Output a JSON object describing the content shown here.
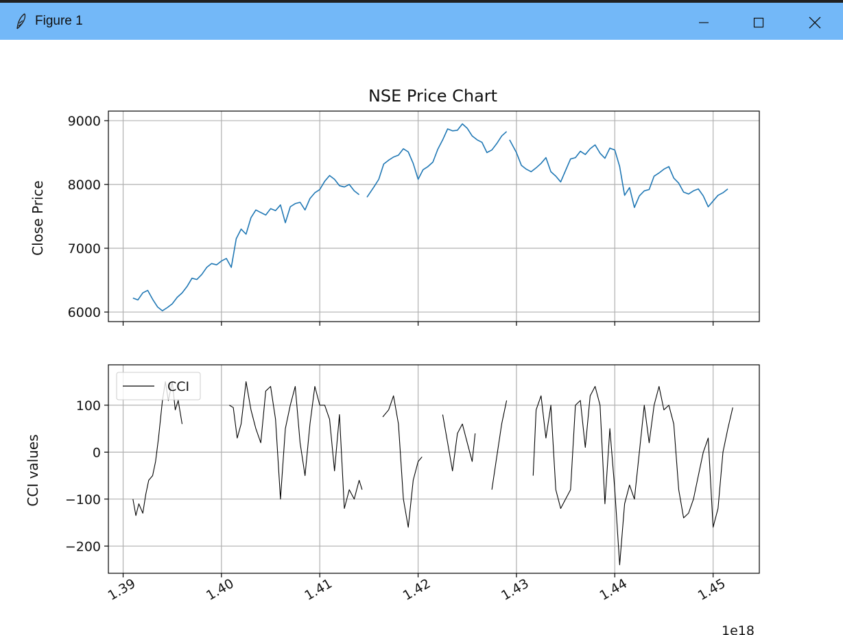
{
  "window": {
    "title": "Figure 1"
  },
  "icons": {
    "app": "feather-icon",
    "minimize": "minimize-icon",
    "maximize": "maximize-icon",
    "close": "close-icon"
  },
  "colors": {
    "titlebar": "#73b8f8",
    "price_line": "#1f77b4",
    "cci_line": "#000000",
    "grid": "#b0b0b0"
  },
  "chart_data": [
    {
      "type": "line",
      "title": "NSE Price Chart",
      "xlabel": "",
      "ylabel": "Close Price",
      "xlim": [
        1.3885,
        1.4547
      ],
      "ylim": [
        5850,
        9150
      ],
      "yticks": [
        6000,
        7000,
        8000,
        9000
      ],
      "ytick_labels": [
        "6000",
        "7000",
        "8000",
        "9000"
      ],
      "grid": true,
      "series": [
        {
          "segments": [
            [
              [
                1.391,
                6220
              ],
              [
                1.3915,
                6190
              ],
              [
                1.392,
                6300
              ],
              [
                1.3925,
                6340
              ],
              [
                1.393,
                6200
              ],
              [
                1.3935,
                6080
              ],
              [
                1.394,
                6020
              ],
              [
                1.3945,
                6070
              ],
              [
                1.395,
                6130
              ],
              [
                1.3955,
                6230
              ],
              [
                1.396,
                6300
              ],
              [
                1.3965,
                6400
              ],
              [
                1.397,
                6530
              ],
              [
                1.3975,
                6510
              ],
              [
                1.398,
                6590
              ],
              [
                1.3985,
                6700
              ],
              [
                1.399,
                6760
              ],
              [
                1.3995,
                6740
              ],
              [
                1.4,
                6800
              ],
              [
                1.4005,
                6840
              ],
              [
                1.401,
                6700
              ],
              [
                1.4015,
                7150
              ],
              [
                1.402,
                7300
              ],
              [
                1.4025,
                7220
              ],
              [
                1.403,
                7480
              ],
              [
                1.4035,
                7600
              ],
              [
                1.404,
                7560
              ],
              [
                1.4045,
                7520
              ],
              [
                1.405,
                7620
              ],
              [
                1.4055,
                7590
              ],
              [
                1.406,
                7680
              ],
              [
                1.4065,
                7400
              ],
              [
                1.407,
                7650
              ],
              [
                1.4075,
                7700
              ],
              [
                1.408,
                7720
              ],
              [
                1.4085,
                7600
              ],
              [
                1.409,
                7780
              ],
              [
                1.4095,
                7870
              ],
              [
                1.41,
                7920
              ],
              [
                1.4105,
                8050
              ],
              [
                1.411,
                8140
              ],
              [
                1.4115,
                8080
              ],
              [
                1.412,
                7980
              ],
              [
                1.4125,
                7960
              ],
              [
                1.413,
                8000
              ],
              [
                1.4135,
                7900
              ],
              [
                1.414,
                7840
              ]
            ],
            [
              [
                1.4148,
                7800
              ],
              [
                1.4155,
                7960
              ],
              [
                1.416,
                8080
              ],
              [
                1.4165,
                8320
              ],
              [
                1.417,
                8380
              ],
              [
                1.4175,
                8430
              ],
              [
                1.418,
                8460
              ],
              [
                1.4185,
                8560
              ],
              [
                1.419,
                8510
              ],
              [
                1.4195,
                8330
              ],
              [
                1.42,
                8080
              ],
              [
                1.4205,
                8230
              ],
              [
                1.421,
                8280
              ],
              [
                1.4215,
                8350
              ],
              [
                1.422,
                8550
              ],
              [
                1.4225,
                8700
              ],
              [
                1.423,
                8870
              ],
              [
                1.4235,
                8840
              ],
              [
                1.424,
                8850
              ],
              [
                1.4245,
                8950
              ],
              [
                1.425,
                8880
              ],
              [
                1.4255,
                8760
              ],
              [
                1.426,
                8700
              ],
              [
                1.4265,
                8660
              ],
              [
                1.427,
                8500
              ],
              [
                1.4275,
                8540
              ],
              [
                1.428,
                8640
              ],
              [
                1.4285,
                8760
              ],
              [
                1.429,
                8830
              ]
            ],
            [
              [
                1.4293,
                8700
              ],
              [
                1.43,
                8500
              ],
              [
                1.4305,
                8300
              ],
              [
                1.431,
                8240
              ],
              [
                1.4315,
                8200
              ],
              [
                1.432,
                8260
              ],
              [
                1.4325,
                8330
              ],
              [
                1.433,
                8420
              ],
              [
                1.4335,
                8200
              ],
              [
                1.434,
                8130
              ],
              [
                1.4345,
                8040
              ],
              [
                1.435,
                8220
              ],
              [
                1.4355,
                8400
              ],
              [
                1.436,
                8420
              ],
              [
                1.4365,
                8520
              ],
              [
                1.437,
                8470
              ],
              [
                1.4375,
                8560
              ],
              [
                1.438,
                8620
              ],
              [
                1.4385,
                8490
              ],
              [
                1.439,
                8410
              ],
              [
                1.4395,
                8570
              ],
              [
                1.44,
                8540
              ],
              [
                1.4405,
                8280
              ],
              [
                1.441,
                7830
              ],
              [
                1.4415,
                7950
              ],
              [
                1.442,
                7640
              ],
              [
                1.4425,
                7820
              ],
              [
                1.443,
                7900
              ],
              [
                1.4435,
                7920
              ],
              [
                1.444,
                8130
              ],
              [
                1.4445,
                8180
              ],
              [
                1.445,
                8240
              ],
              [
                1.4455,
                8280
              ],
              [
                1.446,
                8100
              ],
              [
                1.4465,
                8020
              ],
              [
                1.447,
                7880
              ],
              [
                1.4475,
                7850
              ],
              [
                1.448,
                7900
              ],
              [
                1.4485,
                7930
              ],
              [
                1.449,
                7820
              ],
              [
                1.4495,
                7650
              ],
              [
                1.45,
                7740
              ],
              [
                1.4505,
                7830
              ],
              [
                1.451,
                7870
              ],
              [
                1.4515,
                7930
              ]
            ]
          ]
        }
      ]
    },
    {
      "type": "line",
      "title": "",
      "xlabel": "",
      "ylabel": "CCI values",
      "xlim": [
        1.3885,
        1.4547
      ],
      "ylim": [
        -258,
        186
      ],
      "yticks": [
        -200,
        -100,
        0,
        100
      ],
      "ytick_labels": [
        "−200",
        "−100",
        "0",
        "100"
      ],
      "xticks": [
        1.39,
        1.4,
        1.41,
        1.42,
        1.43,
        1.44,
        1.45
      ],
      "xtick_labels": [
        "1.39",
        "1.40",
        "1.41",
        "1.42",
        "1.43",
        "1.44",
        "1.45"
      ],
      "x_offset_label": "1e18",
      "grid": true,
      "legend": {
        "position": "upper-left",
        "entries": [
          "CCI"
        ]
      },
      "series": [
        {
          "name": "CCI",
          "segments": [
            [
              [
                1.391,
                -100
              ],
              [
                1.3913,
                -135
              ],
              [
                1.3916,
                -110
              ],
              [
                1.392,
                -130
              ],
              [
                1.3923,
                -90
              ],
              [
                1.3926,
                -60
              ],
              [
                1.393,
                -50
              ],
              [
                1.3933,
                -20
              ],
              [
                1.3936,
                30
              ],
              [
                1.394,
                110
              ],
              [
                1.3943,
                150
              ],
              [
                1.3946,
                110
              ],
              [
                1.395,
                150
              ],
              [
                1.3953,
                90
              ],
              [
                1.3956,
                110
              ],
              [
                1.396,
                60
              ]
            ],
            [
              [
                1.4008,
                100
              ],
              [
                1.4012,
                95
              ],
              [
                1.4016,
                30
              ],
              [
                1.402,
                60
              ],
              [
                1.4025,
                150
              ],
              [
                1.403,
                90
              ],
              [
                1.4035,
                50
              ],
              [
                1.404,
                20
              ],
              [
                1.4045,
                130
              ],
              [
                1.405,
                140
              ],
              [
                1.4055,
                70
              ],
              [
                1.406,
                -100
              ],
              [
                1.4065,
                50
              ],
              [
                1.407,
                100
              ],
              [
                1.4075,
                140
              ],
              [
                1.408,
                20
              ],
              [
                1.4085,
                -50
              ],
              [
                1.409,
                60
              ],
              [
                1.4095,
                140
              ],
              [
                1.41,
                100
              ],
              [
                1.4105,
                100
              ],
              [
                1.411,
                70
              ],
              [
                1.4115,
                -40
              ],
              [
                1.412,
                80
              ],
              [
                1.4125,
                -120
              ],
              [
                1.413,
                -80
              ],
              [
                1.4135,
                -100
              ],
              [
                1.414,
                -60
              ],
              [
                1.4143,
                -80
              ]
            ],
            [
              [
                1.4164,
                75
              ],
              [
                1.417,
                90
              ],
              [
                1.4175,
                120
              ],
              [
                1.418,
                60
              ],
              [
                1.4185,
                -100
              ],
              [
                1.419,
                -160
              ],
              [
                1.4195,
                -60
              ],
              [
                1.42,
                -20
              ],
              [
                1.4204,
                -10
              ]
            ],
            [
              [
                1.4225,
                80
              ],
              [
                1.423,
                20
              ],
              [
                1.4235,
                -40
              ],
              [
                1.424,
                40
              ],
              [
                1.4245,
                60
              ],
              [
                1.425,
                20
              ],
              [
                1.4255,
                -20
              ],
              [
                1.4258,
                40
              ]
            ],
            [
              [
                1.4275,
                -80
              ],
              [
                1.428,
                -10
              ],
              [
                1.4285,
                60
              ],
              [
                1.429,
                110
              ]
            ],
            [
              [
                1.4317,
                -50
              ],
              [
                1.432,
                90
              ],
              [
                1.4325,
                120
              ],
              [
                1.433,
                30
              ],
              [
                1.4335,
                100
              ],
              [
                1.434,
                -80
              ],
              [
                1.4345,
                -120
              ],
              [
                1.435,
                -100
              ],
              [
                1.4355,
                -80
              ],
              [
                1.436,
                100
              ],
              [
                1.4365,
                110
              ],
              [
                1.437,
                10
              ],
              [
                1.4375,
                120
              ],
              [
                1.438,
                140
              ],
              [
                1.4385,
                100
              ],
              [
                1.439,
                -110
              ],
              [
                1.4395,
                50
              ],
              [
                1.44,
                -80
              ],
              [
                1.4405,
                -240
              ],
              [
                1.441,
                -110
              ],
              [
                1.4415,
                -70
              ],
              [
                1.442,
                -100
              ],
              [
                1.4425,
                0
              ],
              [
                1.443,
                100
              ],
              [
                1.4435,
                20
              ],
              [
                1.444,
                100
              ],
              [
                1.4445,
                140
              ],
              [
                1.445,
                90
              ],
              [
                1.4455,
                100
              ],
              [
                1.446,
                60
              ],
              [
                1.4465,
                -80
              ],
              [
                1.447,
                -140
              ],
              [
                1.4475,
                -130
              ],
              [
                1.448,
                -100
              ],
              [
                1.4485,
                -50
              ],
              [
                1.449,
                0
              ],
              [
                1.4495,
                30
              ],
              [
                1.45,
                -160
              ],
              [
                1.4505,
                -120
              ],
              [
                1.451,
                0
              ],
              [
                1.4515,
                50
              ],
              [
                1.452,
                95
              ]
            ]
          ]
        }
      ]
    }
  ]
}
